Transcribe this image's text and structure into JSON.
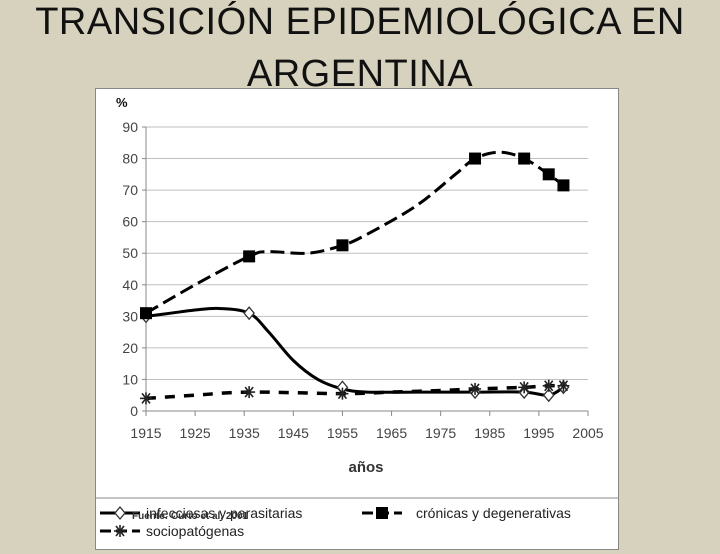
{
  "slide": {
    "title_line1": "TRANSICIÓN EPIDEMIOLÓGICA EN",
    "title_line2": "ARGENTINA"
  },
  "chart_data": {
    "type": "line",
    "title": "",
    "ylabel": "%",
    "xlabel": "años",
    "xlim": [
      1915,
      2005
    ],
    "ylim": [
      0,
      90
    ],
    "x_ticks": [
      1915,
      1925,
      1935,
      1945,
      1955,
      1965,
      1975,
      1985,
      1995,
      2005
    ],
    "y_ticks": [
      0,
      10,
      20,
      30,
      40,
      50,
      60,
      70,
      80,
      90
    ],
    "grid": true,
    "source": "Fuente: Curto et al, 2001",
    "series": [
      {
        "name": "infecciosas y parasitarias",
        "marker": "diamond",
        "line": "solid",
        "color": "#000000",
        "points": [
          [
            1915,
            30
          ],
          [
            1936,
            31
          ],
          [
            1955,
            7.5
          ],
          [
            1982,
            6
          ],
          [
            1992,
            6
          ],
          [
            1997,
            5
          ],
          [
            2000,
            7.5
          ]
        ],
        "curve": [
          [
            1915,
            30
          ],
          [
            1920,
            31
          ],
          [
            1925,
            32
          ],
          [
            1930,
            32.5
          ],
          [
            1936,
            31
          ],
          [
            1940,
            25
          ],
          [
            1945,
            16
          ],
          [
            1950,
            10
          ],
          [
            1955,
            7
          ],
          [
            1960,
            6
          ],
          [
            1970,
            6
          ],
          [
            1982,
            6
          ],
          [
            1992,
            6
          ],
          [
            1997,
            5
          ],
          [
            2000,
            7.5
          ]
        ]
      },
      {
        "name": "crónicas y degenerativas",
        "marker": "square",
        "line": "dashed",
        "color": "#000000",
        "points": [
          [
            1915,
            31
          ],
          [
            1936,
            49
          ],
          [
            1955,
            52.5
          ],
          [
            1982,
            80
          ],
          [
            1992,
            80
          ],
          [
            1997,
            75
          ],
          [
            2000,
            71.5
          ]
        ],
        "curve": [
          [
            1915,
            31
          ],
          [
            1925,
            40
          ],
          [
            1936,
            49
          ],
          [
            1940,
            50.5
          ],
          [
            1948,
            50
          ],
          [
            1955,
            52.5
          ],
          [
            1960,
            56
          ],
          [
            1970,
            65
          ],
          [
            1978,
            75
          ],
          [
            1982,
            80
          ],
          [
            1987,
            82
          ],
          [
            1992,
            80
          ],
          [
            1997,
            75
          ],
          [
            2000,
            71.5
          ]
        ]
      },
      {
        "name": "sociopatógenas",
        "marker": "asterisk",
        "line": "dashed",
        "color": "#000000",
        "points": [
          [
            1915,
            4
          ],
          [
            1936,
            6
          ],
          [
            1955,
            5.5
          ],
          [
            1982,
            7
          ],
          [
            1992,
            7.5
          ],
          [
            1997,
            8
          ],
          [
            2000,
            8
          ]
        ],
        "curve": [
          [
            1915,
            4
          ],
          [
            1925,
            5
          ],
          [
            1936,
            6
          ],
          [
            1955,
            5.5
          ],
          [
            1965,
            6
          ],
          [
            1975,
            6.5
          ],
          [
            1982,
            7
          ],
          [
            1992,
            7.5
          ],
          [
            1997,
            8
          ],
          [
            2000,
            8
          ]
        ]
      }
    ],
    "legend_position": "bottom"
  }
}
